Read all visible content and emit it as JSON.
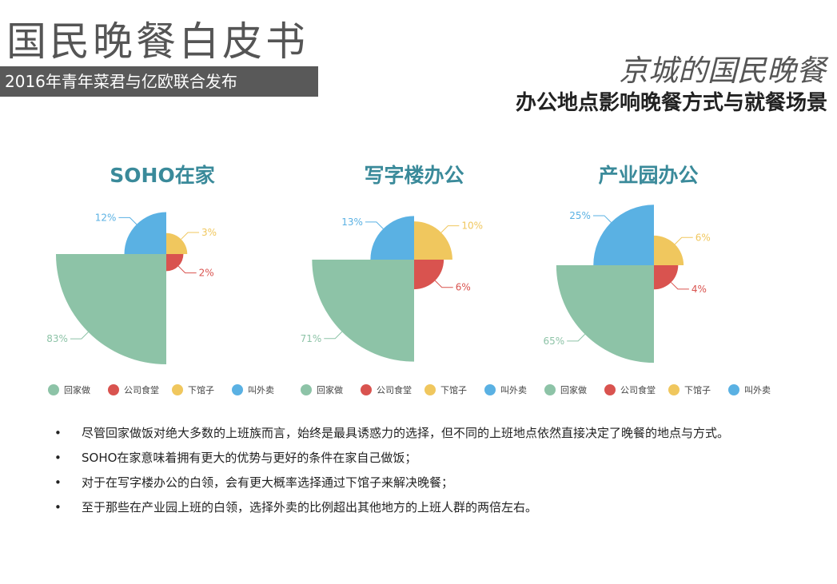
{
  "header": {
    "title": "国民晚餐白皮书",
    "subtitle": "2016年青年菜君与亿欧联合发布",
    "right_title": "京城的国民晚餐",
    "right_subtitle": "办公地点影响晚餐方式与就餐场景"
  },
  "chart_data": [
    {
      "type": "pie",
      "variant": "nightingale-rose",
      "title": "SOHO在家",
      "categories": [
        "回家做",
        "公司食堂",
        "下馆子",
        "叫外卖"
      ],
      "values": [
        83,
        2,
        3,
        12
      ],
      "labels": [
        "83%",
        "2%",
        "3%",
        "12%"
      ],
      "legend": "bottom"
    },
    {
      "type": "pie",
      "variant": "nightingale-rose",
      "title": "写字楼办公",
      "categories": [
        "回家做",
        "公司食堂",
        "下馆子",
        "叫外卖"
      ],
      "values": [
        71,
        6,
        10,
        13
      ],
      "labels": [
        "71%",
        "6%",
        "10%",
        "13%"
      ],
      "legend": "bottom"
    },
    {
      "type": "pie",
      "variant": "nightingale-rose",
      "title": "产业园办公",
      "categories": [
        "回家做",
        "公司食堂",
        "下馆子",
        "叫外卖"
      ],
      "values": [
        65,
        4,
        6,
        25
      ],
      "labels": [
        "65%",
        "4%",
        "6%",
        "25%"
      ],
      "legend": "bottom"
    }
  ],
  "colors": {
    "回家做": "#8dc3a7",
    "公司食堂": "#d9534f",
    "下馆子": "#f0c75e",
    "叫外卖": "#5ab1e3",
    "title": "#3a8a9a"
  },
  "bullets": [
    "尽管回家做饭对绝大多数的上班族而言，始终是最具诱惑力的选择，但不同的上班地点依然直接决定了晚餐的地点与方式。",
    "SOHO在家意味着拥有更大的优势与更好的条件在家自己做饭；",
    "对于在写字楼办公的白领，会有更大概率选择通过下馆子来解决晚餐；",
    "至于那些在产业园上班的白领，选择外卖的比例超出其他地方的上班人群的两倍左右。"
  ]
}
